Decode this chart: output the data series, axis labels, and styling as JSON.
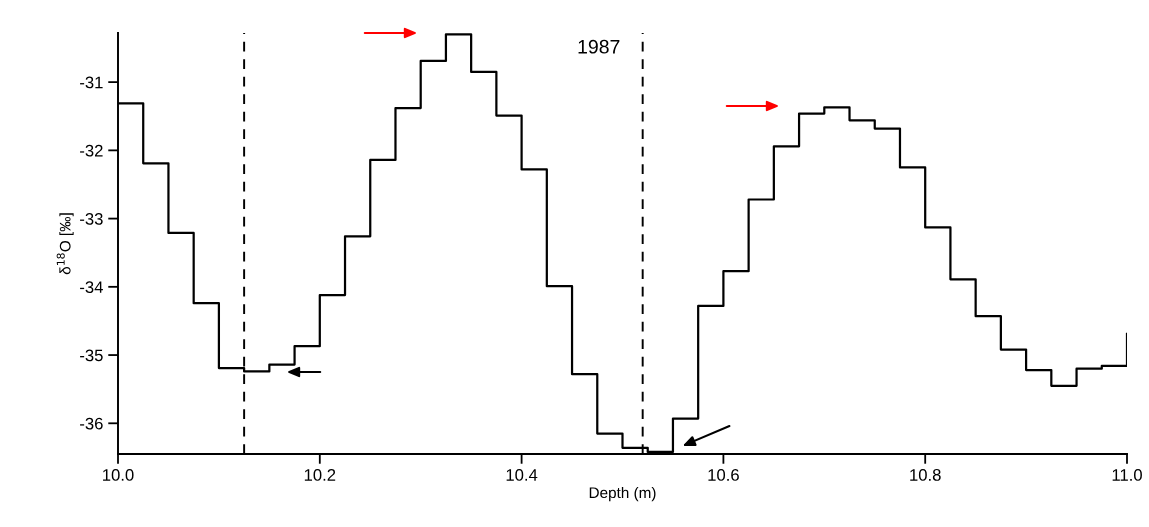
{
  "chart_data": {
    "type": "step",
    "xlabel": "Depth (m)",
    "ylabel": "δ$^{18}$O [‰]",
    "x": [
      10.0,
      10.025,
      10.05,
      10.075,
      10.1,
      10.125,
      10.15,
      10.175,
      10.2,
      10.225,
      10.25,
      10.275,
      10.3,
      10.325,
      10.35,
      10.375,
      10.4,
      10.425,
      10.45,
      10.475,
      10.5,
      10.525,
      10.55,
      10.575,
      10.6,
      10.625,
      10.65,
      10.675,
      10.7,
      10.725,
      10.75,
      10.775,
      10.8,
      10.825,
      10.85,
      10.875,
      10.9,
      10.925,
      10.95,
      10.975,
      11.0
    ],
    "series": [
      {
        "color": "#000000",
        "values": [
          -31.31,
          -32.19,
          -33.21,
          -34.24,
          -35.19,
          -35.24,
          -35.14,
          -34.87,
          -34.12,
          -33.26,
          -32.14,
          -31.38,
          -30.69,
          -30.3,
          -30.85,
          -31.49,
          -32.28,
          -33.99,
          -35.28,
          -36.15,
          -36.36,
          -36.42,
          -35.93,
          -34.28,
          -33.77,
          -32.72,
          -31.94,
          -31.46,
          -31.37,
          -31.56,
          -31.68,
          -32.25,
          -33.13,
          -33.89,
          -34.43,
          -34.92,
          -35.22,
          -35.45,
          -35.2,
          -35.16,
          -34.69
        ]
      }
    ],
    "xlim": [
      10.0,
      11.0
    ],
    "ylim": [
      -36.45,
      -30.28
    ],
    "xticks": [
      {
        "value": 10.0,
        "label": "10.0"
      },
      {
        "value": 10.2,
        "label": "10.2"
      },
      {
        "value": 10.4,
        "label": "10.4"
      },
      {
        "value": 10.6,
        "label": "10.6"
      },
      {
        "value": 10.8,
        "label": "10.8"
      },
      {
        "value": 11.0,
        "label": "11.0"
      }
    ],
    "yticks": [
      -36,
      -35,
      -34,
      -33,
      -32,
      -31
    ],
    "ref_lines": [
      {
        "axis": "x",
        "value": 10.125,
        "line_style": "dashed",
        "color": "#000000"
      },
      {
        "axis": "x",
        "value": 10.52,
        "line_style": "dashed",
        "color": "#000000"
      }
    ],
    "annotations": [
      "1987"
    ],
    "grid": false,
    "legend": false,
    "line_style": "solid",
    "marker": "none"
  }
}
